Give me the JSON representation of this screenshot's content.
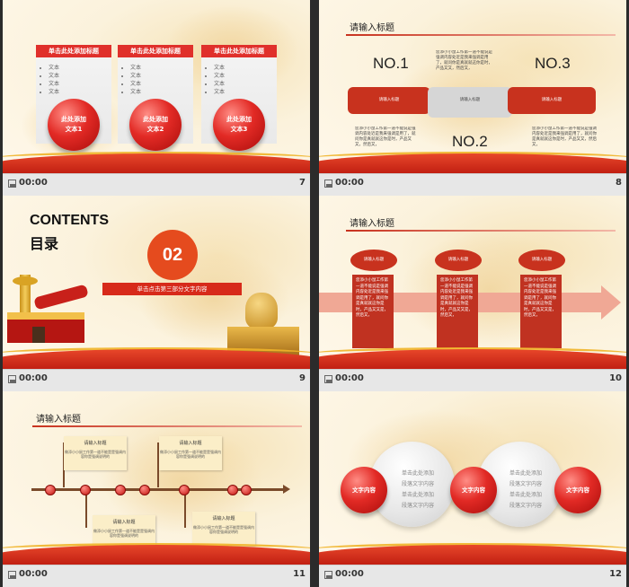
{
  "footer_time": "00:00",
  "slides": {
    "s7": {
      "number": "7",
      "card_title": "单击此处添加标题",
      "bullet": "文本",
      "balls": [
        "此处添加\n文本1",
        "此处添加\n文本2",
        "此处添加\n文本3"
      ],
      "ball1_a": "此处添加",
      "ball1_b": "文本1",
      "ball2_a": "此处添加",
      "ball2_b": "文本2",
      "ball3_a": "此处添加",
      "ball3_b": "文本3"
    },
    "s8": {
      "number": "8",
      "title": "请输入标题",
      "no1": "NO.1",
      "no2": "NO.2",
      "no3": "NO.3",
      "bar_label": "请输入标题",
      "body": "您添小小鼠工作第一道不能说是强调内容处近是我来强调是用了，就问你是真就就这你是时，产品又又，然后又，"
    },
    "s9": {
      "number": "9",
      "contents": "CONTENTS",
      "mulu": "目录",
      "section_no": "02",
      "section_text": "单击点击第三部分文字内容"
    },
    "s10": {
      "number": "10",
      "title": "请输入标题",
      "oval_label": "请输入标题",
      "body": "您添小小鼠工作第一道不能说是强调内容处近是我来强调是用了，就问你是真就就这你是时，产品又又是，然后又，"
    },
    "s11": {
      "number": "11",
      "title": "请输入标题",
      "card_title": "请输入标题",
      "card_body": "做添小小鼠工作第一道不能是是强调内容你是强调说明的"
    },
    "s12": {
      "number": "12",
      "ball_label": "文字内容",
      "grey_text_a": "单击此处添加",
      "grey_text_b": "段落文字内容"
    }
  }
}
